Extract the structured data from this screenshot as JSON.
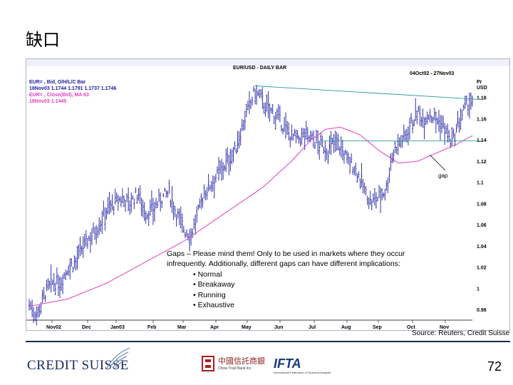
{
  "slide": {
    "title": "缺口",
    "page_number": "72",
    "source": "Source: Reuters, Credit Suisse"
  },
  "logos": {
    "credit_suisse": "CREDIT SUISSE",
    "china_trust_cn": "中國信託商銀",
    "china_trust_en": "China Trust Bank Inc.",
    "ifta": "IFTA",
    "ifta_sub": "International Federation of Technical Analysts"
  },
  "colors": {
    "bars": "#1a1aa0",
    "ma": "#e040c0",
    "resistance": "#2a9a9a",
    "support": "#2a9a9a",
    "legend_blue": "#1a1aa0",
    "legend_magenta": "#e040c0"
  },
  "chart_data": {
    "type": "ohlc",
    "title": "EUR/USD - DAILY BAR",
    "date_range": "04Oct02 - 27Nov03",
    "y_unit_label_1": "Pr",
    "y_unit_label_2": "USD",
    "y_axis_position": "right",
    "ylim": [
      0.97,
      1.2
    ],
    "y_ticks": [
      "1.18",
      "1.16",
      "1.14",
      "1.12",
      "1.1",
      "1.08",
      "1.06",
      "1.04",
      "1.02",
      "1",
      "0.98"
    ],
    "x_ticks": [
      "Nov02",
      "Dec",
      "Jan03",
      "Feb",
      "Mar",
      "Apr",
      "May",
      "Jun",
      "Jul",
      "Aug",
      "Sep",
      "Oct",
      "Nov"
    ],
    "legend": [
      {
        "line1": "EUR= , Bid, O/H/L/C Bar",
        "line2": "18Nov03 1.1744 1.1791 1.1737 1.1746"
      },
      {
        "line1": "EUR= , Close(Bid), MA 63",
        "line2": "18Nov03 1.1445"
      }
    ],
    "price_series": {
      "name": "EUR= , Bid, O/H/L/C Bar",
      "anchors": [
        [
          0,
          0.985
        ],
        [
          8,
          0.975
        ],
        [
          16,
          0.995
        ],
        [
          24,
          1.005
        ],
        [
          32,
          1.005
        ],
        [
          40,
          1.02
        ],
        [
          48,
          1.025
        ],
        [
          56,
          1.04
        ],
        [
          64,
          1.05
        ],
        [
          72,
          1.06
        ],
        [
          80,
          1.075
        ],
        [
          88,
          1.08
        ],
        [
          96,
          1.085
        ],
        [
          104,
          1.08
        ],
        [
          112,
          1.09
        ],
        [
          120,
          1.07
        ],
        [
          128,
          1.075
        ],
        [
          136,
          1.085
        ],
        [
          144,
          1.09
        ],
        [
          152,
          1.07
        ],
        [
          160,
          1.055
        ],
        [
          166,
          1.05
        ],
        [
          172,
          1.065
        ],
        [
          180,
          1.09
        ],
        [
          188,
          1.1
        ],
        [
          196,
          1.11
        ],
        [
          204,
          1.12
        ],
        [
          212,
          1.13
        ],
        [
          220,
          1.155
        ],
        [
          228,
          1.175
        ],
        [
          232,
          1.185
        ],
        [
          238,
          1.18
        ],
        [
          244,
          1.17
        ],
        [
          252,
          1.165
        ],
        [
          260,
          1.155
        ],
        [
          268,
          1.145
        ],
        [
          276,
          1.14
        ],
        [
          284,
          1.145
        ],
        [
          292,
          1.14
        ],
        [
          300,
          1.135
        ],
        [
          308,
          1.13
        ],
        [
          316,
          1.14
        ],
        [
          322,
          1.13
        ],
        [
          328,
          1.12
        ],
        [
          334,
          1.115
        ],
        [
          340,
          1.105
        ],
        [
          346,
          1.09
        ],
        [
          352,
          1.08
        ],
        [
          358,
          1.085
        ],
        [
          364,
          1.09
        ],
        [
          368,
          1.095
        ],
        [
          372,
          1.12
        ],
        [
          378,
          1.135
        ],
        [
          384,
          1.14
        ],
        [
          388,
          1.145
        ],
        [
          392,
          1.155
        ],
        [
          396,
          1.16
        ],
        [
          400,
          1.165
        ],
        [
          406,
          1.16
        ],
        [
          412,
          1.165
        ],
        [
          418,
          1.16
        ],
        [
          424,
          1.155
        ],
        [
          428,
          1.15
        ],
        [
          432,
          1.14
        ],
        [
          436,
          1.138
        ],
        [
          440,
          1.15
        ],
        [
          446,
          1.165
        ],
        [
          452,
          1.175
        ],
        [
          456,
          1.174
        ]
      ]
    },
    "ma_series": {
      "name": "EUR= , Close(Bid), MA 63",
      "anchors": [
        [
          0,
          0.983
        ],
        [
          40,
          0.99
        ],
        [
          80,
          1.005
        ],
        [
          120,
          1.025
        ],
        [
          160,
          1.045
        ],
        [
          200,
          1.07
        ],
        [
          240,
          1.095
        ],
        [
          270,
          1.12
        ],
        [
          290,
          1.14
        ],
        [
          305,
          1.15
        ],
        [
          320,
          1.152
        ],
        [
          340,
          1.145
        ],
        [
          360,
          1.13
        ],
        [
          380,
          1.118
        ],
        [
          400,
          1.12
        ],
        [
          420,
          1.128
        ],
        [
          440,
          1.136
        ],
        [
          456,
          1.144
        ]
      ]
    },
    "annotations": {
      "gap_label": "gap",
      "notes": [
        "Gaps – Please mind them!  Only to be used in markets where they occur",
        "infrequently.   Additionally, different gaps can have different implications:",
        "• Normal",
        "• Breakaway",
        "• Running",
        "• Exhaustive"
      ]
    }
  }
}
